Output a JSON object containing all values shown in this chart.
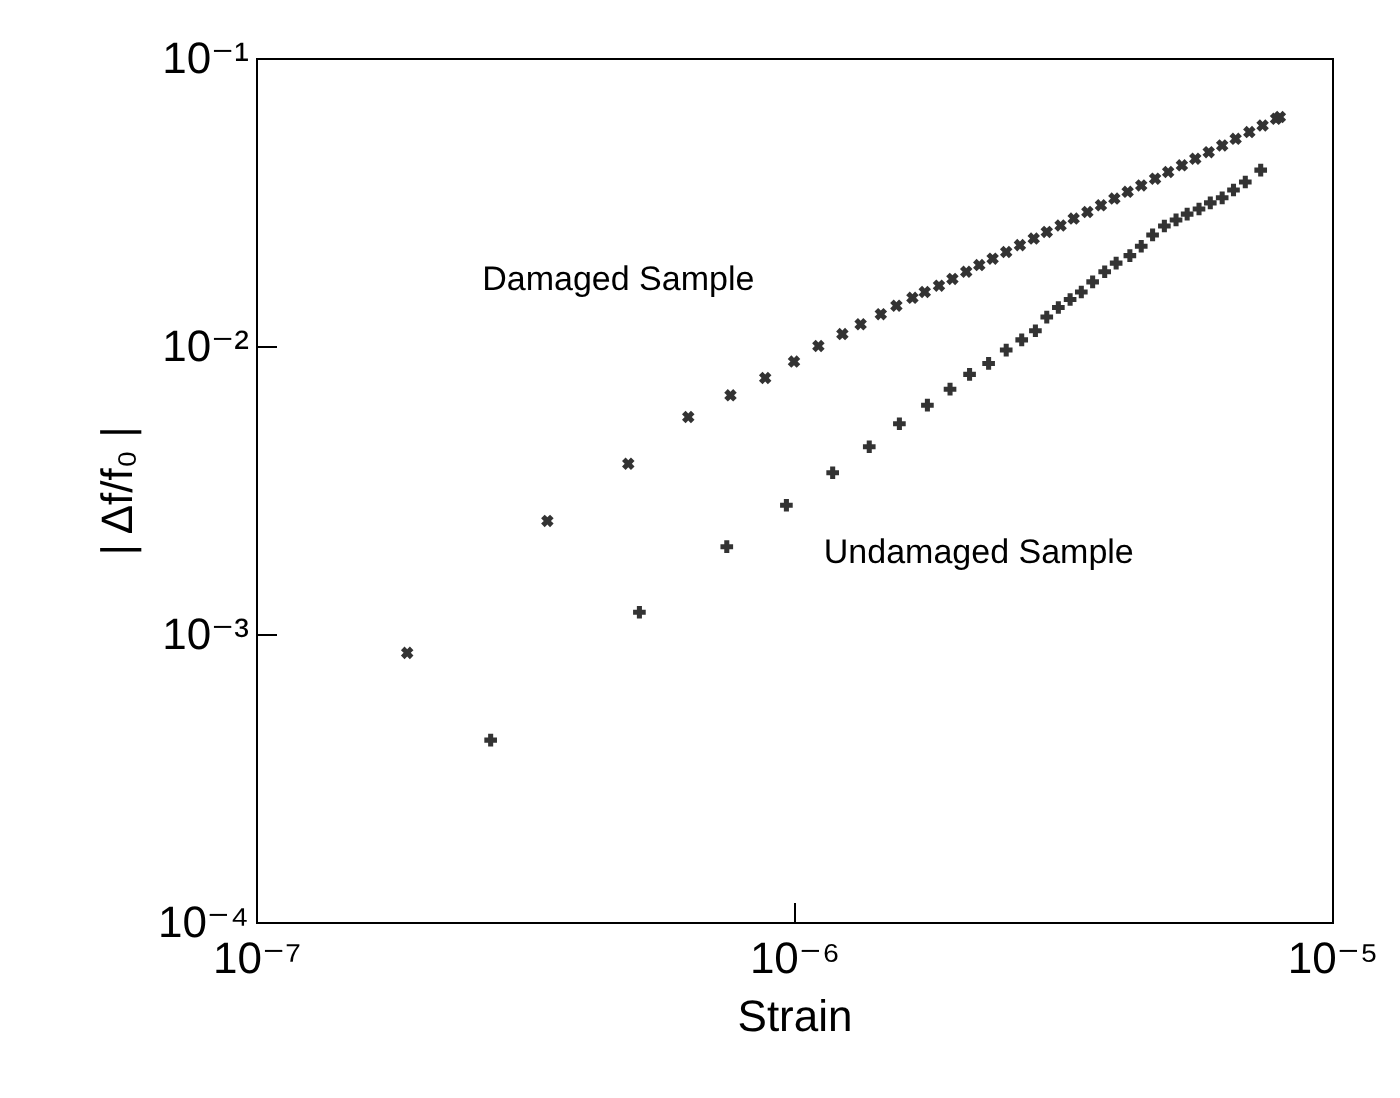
{
  "chart_data": {
    "type": "scatter",
    "xlabel": "Strain",
    "ylabel": "| Δf/f₀ |",
    "log": "xy",
    "grid": false,
    "legend": false,
    "xlim": [
      1e-07,
      1e-05
    ],
    "ylim": [
      0.0001,
      0.1
    ],
    "xticks": [
      {
        "value": 1e-07,
        "label": "10⁻⁷"
      },
      {
        "value": 1e-06,
        "label": "10⁻⁶"
      },
      {
        "value": 1e-05,
        "label": "10⁻⁵"
      }
    ],
    "yticks": [
      {
        "value": 0.0001,
        "label": "10⁻⁴"
      },
      {
        "value": 0.001,
        "label": "10⁻³"
      },
      {
        "value": 0.01,
        "label": "10⁻²"
      },
      {
        "value": 0.1,
        "label": "10⁻¹"
      }
    ],
    "series": [
      {
        "name": "Damaged Sample",
        "color": "#333333",
        "marker": "x",
        "x": [
          1.91e-07,
          3.48e-07,
          4.92e-07,
          6.36e-07,
          7.62e-07,
          8.84e-07,
          1e-06,
          1.11e-06,
          1.23e-06,
          1.33e-06,
          1.45e-06,
          1.55e-06,
          1.66e-06,
          1.75e-06,
          1.86e-06,
          1.97e-06,
          2.09e-06,
          2.21e-06,
          2.34e-06,
          2.48e-06,
          2.63e-06,
          2.79e-06,
          2.95e-06,
          3.13e-06,
          3.31e-06,
          3.51e-06,
          3.72e-06,
          3.94e-06,
          4.17e-06,
          4.42e-06,
          4.69e-06,
          4.96e-06,
          5.26e-06,
          5.57e-06,
          5.9e-06,
          6.25e-06,
          6.62e-06,
          7.02e-06,
          7.43e-06,
          7.87e-06,
          8e-06
        ],
        "values": [
          0.00086,
          0.00247,
          0.0039,
          0.00567,
          0.00674,
          0.00774,
          0.00883,
          0.01,
          0.011,
          0.0119,
          0.0129,
          0.0138,
          0.0147,
          0.0154,
          0.0162,
          0.0171,
          0.0181,
          0.0191,
          0.0201,
          0.0212,
          0.0224,
          0.0236,
          0.0249,
          0.0262,
          0.0277,
          0.0292,
          0.0308,
          0.0325,
          0.0343,
          0.0361,
          0.0381,
          0.0402,
          0.0424,
          0.0447,
          0.0471,
          0.0497,
          0.0524,
          0.0553,
          0.0583,
          0.0615,
          0.0624
        ]
      },
      {
        "name": "Undamaged Sample",
        "color": "#333333",
        "marker": "cross",
        "x": [
          2.73e-07,
          5.16e-07,
          7.5e-07,
          9.68e-07,
          1.18e-06,
          1.38e-06,
          1.57e-06,
          1.77e-06,
          1.95e-06,
          2.12e-06,
          2.3e-06,
          2.48e-06,
          2.65e-06,
          2.81e-06,
          2.95e-06,
          3.1e-06,
          3.26e-06,
          3.42e-06,
          3.59e-06,
          3.78e-06,
          3.97e-06,
          4.21e-06,
          4.42e-06,
          4.64e-06,
          4.88e-06,
          5.13e-06,
          5.38e-06,
          5.66e-06,
          5.94e-06,
          6.25e-06,
          6.56e-06,
          6.9e-06,
          7.37e-06
        ],
        "values": [
          0.000428,
          0.00119,
          0.00201,
          0.0028,
          0.00363,
          0.00447,
          0.00537,
          0.00623,
          0.00708,
          0.00797,
          0.0087,
          0.00968,
          0.0105,
          0.0113,
          0.0126,
          0.0136,
          0.0145,
          0.0154,
          0.0167,
          0.0181,
          0.0194,
          0.0206,
          0.0222,
          0.0243,
          0.0261,
          0.0274,
          0.0287,
          0.0299,
          0.0314,
          0.0327,
          0.0348,
          0.0371,
          0.0408
        ]
      }
    ]
  }
}
